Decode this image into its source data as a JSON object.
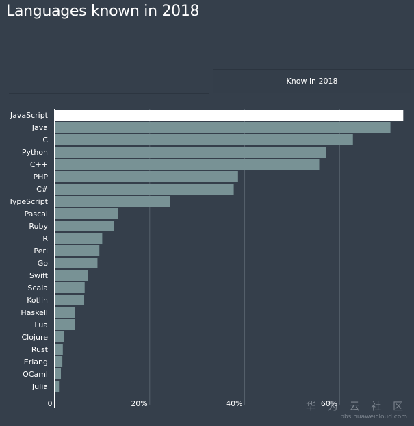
{
  "colors": {
    "background": "#353f4b",
    "bar": "#789295",
    "bar_highlight": "#ffffff",
    "gridline": "#56616c",
    "axis": "#ffffff"
  },
  "watermark": {
    "text": "华 为 云 社 区",
    "url": "bbs.huaweicloud.com"
  },
  "chart_data": {
    "type": "bar",
    "orientation": "horizontal",
    "title": "Languages known in 2018",
    "column_label": "Know in 2018",
    "xlabel": "",
    "ylabel": "",
    "xlim": [
      0,
      73.5
    ],
    "x_ticks": [
      0,
      20,
      40,
      60
    ],
    "x_tick_labels": [
      "0",
      "20%",
      "40%",
      "60%"
    ],
    "grid": true,
    "highlight_category": "JavaScript",
    "categories": [
      "JavaScript",
      "Java",
      "C",
      "Python",
      "C++",
      "PHP",
      "C#",
      "TypeScript",
      "Pascal",
      "Ruby",
      "R",
      "Perl",
      "Go",
      "Swift",
      "Scala",
      "Kotlin",
      "Haskell",
      "Lua",
      "Clojure",
      "Rust",
      "Erlang",
      "OCaml",
      "Julia"
    ],
    "values": [
      73.4,
      70.7,
      62.8,
      57.1,
      55.7,
      38.6,
      37.7,
      24.3,
      13.3,
      12.5,
      10.0,
      9.4,
      9.0,
      7.0,
      6.3,
      6.2,
      4.3,
      4.2,
      1.9,
      1.7,
      1.6,
      1.3,
      0.9
    ]
  }
}
